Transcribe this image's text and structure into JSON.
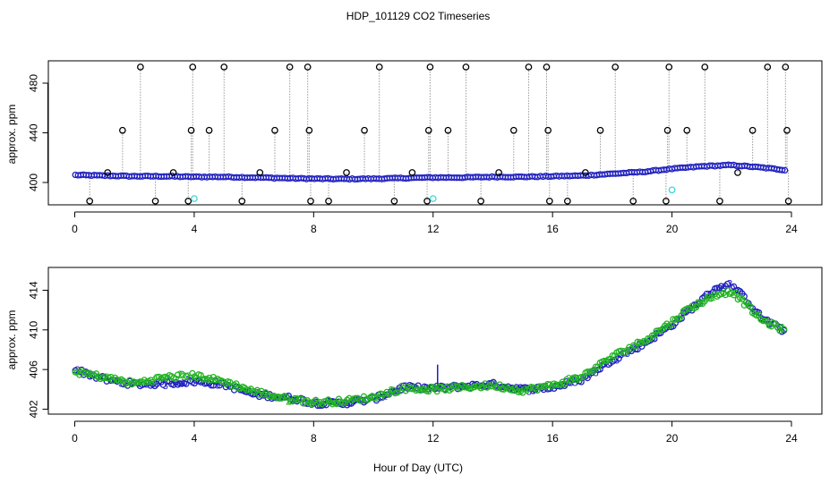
{
  "title": "HDP_101129  CO2 Timeseries",
  "xlabel": "Hour of Day (UTC)",
  "colors": {
    "outlier": "#000000",
    "series3": "#1f1fbf",
    "series2": "#22b422",
    "low": "#3fd6d6",
    "dropline": "#9a9a9a"
  },
  "chart_data": [
    {
      "type": "scatter",
      "panel": "top",
      "ylabel": "approx. ppm",
      "xlim": [
        0,
        24
      ],
      "ylim": [
        382,
        498
      ],
      "x_ticks": [
        0,
        4,
        8,
        12,
        16,
        20,
        24
      ],
      "y_ticks": [
        400,
        440,
        480
      ],
      "baseline": {
        "x": [
          0,
          1,
          2,
          3,
          4,
          5,
          6,
          7,
          8,
          9,
          10,
          11,
          12,
          13,
          14,
          15,
          16,
          17,
          18,
          19,
          20,
          21,
          22,
          23,
          23.8
        ],
        "y": [
          406,
          405.5,
          405,
          405,
          404.5,
          404.5,
          404,
          403.5,
          403,
          402.8,
          403,
          403.5,
          404,
          404,
          404.5,
          404.5,
          405,
          405.5,
          407,
          408.5,
          411,
          413,
          414,
          412,
          410
        ]
      },
      "outliers": [
        {
          "x": 0.5,
          "y": 385
        },
        {
          "x": 1.1,
          "y": 408
        },
        {
          "x": 1.6,
          "y": 442
        },
        {
          "x": 2.2,
          "y": 493
        },
        {
          "x": 2.7,
          "y": 385
        },
        {
          "x": 3.3,
          "y": 408
        },
        {
          "x": 3.8,
          "y": 385
        },
        {
          "x": 3.9,
          "y": 442
        },
        {
          "x": 3.95,
          "y": 493
        },
        {
          "x": 4.5,
          "y": 442
        },
        {
          "x": 5.0,
          "y": 493
        },
        {
          "x": 5.6,
          "y": 385
        },
        {
          "x": 6.2,
          "y": 408
        },
        {
          "x": 6.7,
          "y": 442
        },
        {
          "x": 7.2,
          "y": 493
        },
        {
          "x": 7.8,
          "y": 493
        },
        {
          "x": 7.85,
          "y": 442
        },
        {
          "x": 7.9,
          "y": 385
        },
        {
          "x": 8.5,
          "y": 385
        },
        {
          "x": 9.1,
          "y": 408
        },
        {
          "x": 9.7,
          "y": 442
        },
        {
          "x": 10.2,
          "y": 493
        },
        {
          "x": 10.7,
          "y": 385
        },
        {
          "x": 11.3,
          "y": 408
        },
        {
          "x": 11.8,
          "y": 385
        },
        {
          "x": 11.85,
          "y": 442
        },
        {
          "x": 11.9,
          "y": 493
        },
        {
          "x": 12.5,
          "y": 442
        },
        {
          "x": 13.1,
          "y": 493
        },
        {
          "x": 13.6,
          "y": 385
        },
        {
          "x": 14.2,
          "y": 408
        },
        {
          "x": 14.7,
          "y": 442
        },
        {
          "x": 15.2,
          "y": 493
        },
        {
          "x": 15.8,
          "y": 493
        },
        {
          "x": 15.85,
          "y": 442
        },
        {
          "x": 15.9,
          "y": 385
        },
        {
          "x": 16.5,
          "y": 385
        },
        {
          "x": 17.1,
          "y": 408
        },
        {
          "x": 17.6,
          "y": 442
        },
        {
          "x": 18.1,
          "y": 493
        },
        {
          "x": 18.7,
          "y": 385
        },
        {
          "x": 19.8,
          "y": 385
        },
        {
          "x": 19.85,
          "y": 442
        },
        {
          "x": 19.9,
          "y": 493
        },
        {
          "x": 20.5,
          "y": 442
        },
        {
          "x": 21.1,
          "y": 493
        },
        {
          "x": 21.6,
          "y": 385
        },
        {
          "x": 22.2,
          "y": 408
        },
        {
          "x": 22.7,
          "y": 442
        },
        {
          "x": 23.2,
          "y": 493
        },
        {
          "x": 23.8,
          "y": 493
        },
        {
          "x": 23.85,
          "y": 442
        },
        {
          "x": 23.9,
          "y": 385
        }
      ],
      "low_points": [
        {
          "x": 4.0,
          "y": 387
        },
        {
          "x": 12.0,
          "y": 387
        },
        {
          "x": 20.0,
          "y": 394
        }
      ]
    },
    {
      "type": "scatter",
      "panel": "bottom",
      "ylabel": "approx. ppm",
      "xlim": [
        0,
        24
      ],
      "ylim": [
        401.5,
        416.3
      ],
      "x_ticks": [
        0,
        4,
        8,
        12,
        16,
        20,
        24
      ],
      "y_ticks": [
        402,
        406,
        410,
        414
      ],
      "markers": [
        "3",
        "2"
      ],
      "series": [
        {
          "marker": "3",
          "x": [
            0,
            1,
            2,
            3,
            4,
            5,
            6,
            7,
            7.5,
            8,
            9,
            10,
            11,
            12,
            13,
            14,
            15,
            16,
            17,
            18,
            19,
            20,
            20.5,
            21,
            21.5,
            22,
            22.5,
            23,
            23.8
          ],
          "y": [
            406,
            405,
            404.5,
            404.6,
            404.8,
            404.5,
            403.5,
            403.2,
            403,
            402.6,
            402.6,
            403,
            404.2,
            404.1,
            404.3,
            404.5,
            404,
            404.2,
            405,
            407,
            408.5,
            410.5,
            411.8,
            413,
            414.3,
            414.5,
            413,
            411.2,
            409.8
          ]
        },
        {
          "marker": "2",
          "x": [
            0,
            1,
            2,
            3,
            4,
            5,
            6,
            7,
            7.5,
            8,
            9,
            10,
            11,
            12,
            13,
            14,
            15,
            16,
            17,
            18,
            19,
            20,
            20.5,
            21,
            21.5,
            22,
            22.5,
            23,
            23.8
          ],
          "y": [
            405.8,
            405.2,
            404.6,
            405.2,
            405.4,
            404.8,
            403.8,
            403.1,
            402.9,
            402.7,
            402.8,
            403.2,
            404.1,
            404,
            404.2,
            404.4,
            403.9,
            404.4,
            405.3,
            407.3,
            408.8,
            410.8,
            412,
            412.8,
            413.6,
            413.9,
            412.5,
            411,
            409.9
          ]
        }
      ],
      "spike": {
        "x": 12.15,
        "from": 404.2,
        "to": 406.5
      }
    }
  ]
}
